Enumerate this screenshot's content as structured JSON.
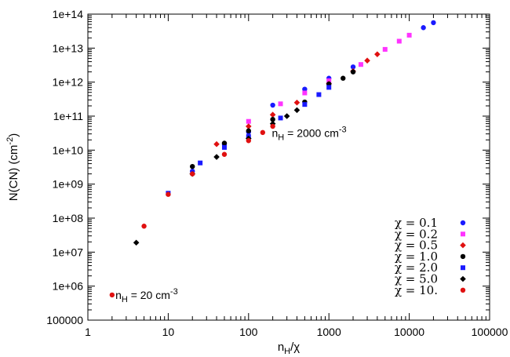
{
  "chart_data": {
    "type": "scatter",
    "title": "",
    "xlabel": {
      "main": "n",
      "sub": "H",
      "rest": "/χ"
    },
    "ylabel": {
      "main": "N(CN)  (cm",
      "sup": "-2",
      "rest": ")"
    },
    "x_scale": "log",
    "y_scale": "log",
    "xlim": [
      1,
      100000
    ],
    "ylim": [
      100000,
      100000000000000
    ],
    "x_ticks": [
      1,
      10,
      100,
      1000,
      10000,
      100000
    ],
    "x_tick_labels": [
      "1",
      "10",
      "100",
      "1000",
      "10000",
      "100000"
    ],
    "y_ticks": [
      100000,
      1000000,
      10000000,
      100000000,
      1000000000,
      10000000000,
      100000000000,
      1000000000000,
      10000000000000,
      100000000000000
    ],
    "y_tick_labels": [
      "100000",
      "1e+06",
      "1e+07",
      "1e+08",
      "1e+09",
      "1e+10",
      "1e+11",
      "1e+12",
      "1e+13",
      "1e+14"
    ],
    "grid": false,
    "legend_position": "bottom-right",
    "annotations": [
      {
        "id": "nh2000",
        "main": "n",
        "sub": "H",
        "value": " = 2000 cm",
        "sup": "-3",
        "x": 195,
        "y": 32000000000.0
      },
      {
        "id": "nh20",
        "main": "n",
        "sub": "H",
        "value": " = 20 cm",
        "sup": "-3",
        "x": 2.2,
        "y": 550000.0
      }
    ],
    "series": [
      {
        "name": "χ = 0.1",
        "marker": "circle",
        "color": "#1a1aff",
        "points": [
          [
            20,
            2400000000.0
          ],
          [
            50,
            15000000000.0
          ],
          [
            100,
            34000000000.0
          ],
          [
            200,
            210000000000.0
          ],
          [
            500,
            620000000000.0
          ],
          [
            1000,
            1300000000000.0
          ],
          [
            2000,
            2800000000000.0
          ],
          [
            15000,
            40000000000000.0
          ],
          [
            20000,
            56000000000000.0
          ]
        ]
      },
      {
        "name": "χ = 0.2",
        "marker": "square",
        "color": "#ff33ff",
        "points": [
          [
            100,
            70000000000.0
          ],
          [
            250,
            230000000000.0
          ],
          [
            500,
            480000000000.0
          ],
          [
            1000,
            1100000000000.0
          ],
          [
            2500,
            3300000000000.0
          ],
          [
            5000,
            9200000000000.0
          ],
          [
            7500,
            16000000000000.0
          ],
          [
            10000,
            24000000000000.0
          ]
        ]
      },
      {
        "name": "χ = 0.5",
        "marker": "diamond",
        "color": "#e01010",
        "points": [
          [
            40,
            15000000000.0
          ],
          [
            100,
            50000000000.0
          ],
          [
            200,
            110000000000.0
          ],
          [
            400,
            250000000000.0
          ],
          [
            1000,
            900000000000.0
          ],
          [
            2000,
            2100000000000.0
          ],
          [
            3000,
            4300000000000.0
          ],
          [
            4000,
            6600000000000.0
          ]
        ]
      },
      {
        "name": "χ = 1.0",
        "marker": "circle",
        "color": "#000000",
        "points": [
          [
            20,
            3300000000.0
          ],
          [
            50,
            16000000000.0
          ],
          [
            100,
            37000000000.0
          ],
          [
            200,
            80000000000.0
          ],
          [
            500,
            260000000000.0
          ],
          [
            1000,
            880000000000.0
          ],
          [
            1500,
            1300000000000.0
          ],
          [
            2000,
            2000000000000.0
          ]
        ]
      },
      {
        "name": "χ = 2.0",
        "marker": "square",
        "color": "#1a1aff",
        "points": [
          [
            10,
            540000000.0
          ],
          [
            25,
            4200000000.0
          ],
          [
            50,
            12000000000.0
          ],
          [
            100,
            25000000000.0
          ],
          [
            250,
            88000000000.0
          ],
          [
            500,
            220000000000.0
          ],
          [
            750,
            430000000000.0
          ],
          [
            1000,
            700000000000.0
          ]
        ]
      },
      {
        "name": "χ = 5.0",
        "marker": "diamond",
        "color": "#000000",
        "points": [
          [
            4,
            19000000.0
          ],
          [
            20,
            2000000000.0
          ],
          [
            40,
            6300000000.0
          ],
          [
            100,
            22000000000.0
          ],
          [
            200,
            60000000000.0
          ],
          [
            300,
            100000000000.0
          ],
          [
            400,
            150000000000.0
          ]
        ]
      },
      {
        "name": "χ = 10.",
        "marker": "circle",
        "color": "#e01010",
        "points": [
          [
            2,
            550000.0
          ],
          [
            5,
            58000000.0
          ],
          [
            10,
            500000000.0
          ],
          [
            20,
            2000000000.0
          ],
          [
            50,
            7500000000.0
          ],
          [
            100,
            19000000000.0
          ],
          [
            150,
            33000000000.0
          ],
          [
            200,
            50000000000.0
          ]
        ]
      }
    ]
  }
}
